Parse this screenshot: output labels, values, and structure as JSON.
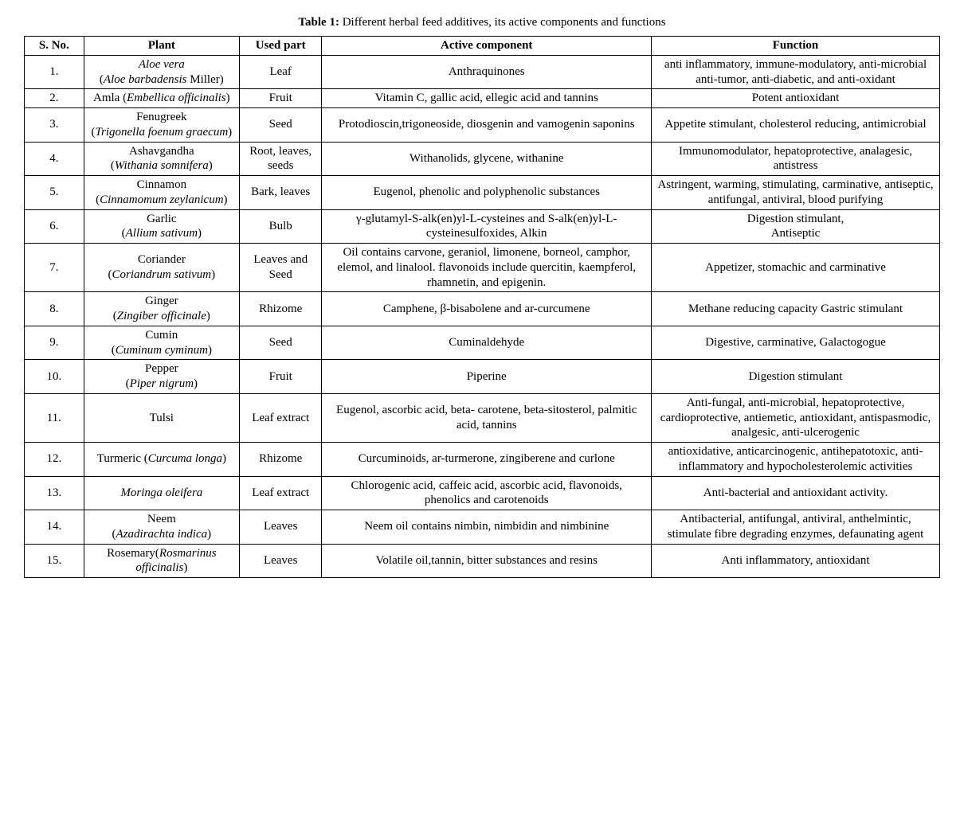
{
  "table": {
    "caption_label": "Table 1:",
    "caption_text": " Different herbal feed additives, its active components and functions",
    "columns": [
      "S. No.",
      "Plant",
      "Used part",
      "Active component",
      "Function"
    ],
    "rows": [
      {
        "sno": "1.",
        "plant_html": "<span class=\"it\">Aloe vera</span><br>(<span class=\"it\">Aloe barbadensis</span> Miller)",
        "part": "Leaf",
        "component": "Anthraquinones",
        "function": "anti inflammatory, immune-modulatory, anti-microbial anti-tumor, anti-diabetic, and anti-oxidant"
      },
      {
        "sno": "2.",
        "plant_html": "Amla (<span class=\"it\">Embellica officinalis</span>)",
        "part": "Fruit",
        "component": "Vitamin C, gallic acid, ellegic acid and tannins",
        "function": "Potent antioxidant"
      },
      {
        "sno": "3.",
        "plant_html": "Fenugreek<br>(<span class=\"it\">Trigonella foenum graecum</span>)",
        "part": "Seed",
        "component": "Protodioscin,trigoneoside, diosgenin and vamogenin saponins",
        "function": "Appetite stimulant, cholesterol reducing, antimicrobial"
      },
      {
        "sno": "4.",
        "plant_html": "Ashavgandha<br>(<span class=\"it\">Withania somnifera</span>)",
        "part": "Root, leaves, seeds",
        "component": "Withanolids, glycene, withanine",
        "function": "Immunomodulator, hepatoprotective, analagesic, antistress"
      },
      {
        "sno": "5.",
        "plant_html": "Cinnamon<br>(<span class=\"it\">Cinnamomum zeylanicum</span>)",
        "part": "Bark, leaves",
        "component": "Eugenol, phenolic and polyphenolic substances",
        "function": "Astringent, warming, stimulating, carminative, antiseptic, antifungal, antiviral, blood purifying"
      },
      {
        "sno": "6.",
        "plant_html": "Garlic<br>(<span class=\"it\">Allium sativum</span>)",
        "part": "Bulb",
        "component": "γ-glutamyl-S-alk(en)yl-L-cysteines and S-alk(en)yl-L-cysteinesulfoxides, Alkin",
        "function": "Digestion stimulant,<br>Antiseptic"
      },
      {
        "sno": "7.",
        "plant_html": "Coriander<br>(<span class=\"it\">Coriandrum sativum</span>)",
        "part": "Leaves and Seed",
        "component": "Oil contains carvone, geraniol, limonene, borneol, camphor, elemol, and linalool. flavonoids include quercitin, kaempferol, rhamnetin, and epigenin.",
        "function": "Appetizer, stomachic and carminative"
      },
      {
        "sno": "8.",
        "plant_html": "Ginger<br>(<span class=\"it\">Zingiber officinale</span>)",
        "part": "Rhizome",
        "component": "Camphene, β-bisabolene and ar-curcumene",
        "function": "Methane reducing capacity Gastric stimulant"
      },
      {
        "sno": "9.",
        "plant_html": "Cumin<br>(<span class=\"it\">Cuminum cyminum</span>)",
        "part": "Seed",
        "component": "Cuminaldehyde",
        "function": "Digestive, carminative, Galactogogue"
      },
      {
        "sno": "10.",
        "plant_html": "Pepper<br>(<span class=\"it\">Piper nigrum</span>)",
        "part": "Fruit",
        "component": "Piperine",
        "function": "Digestion stimulant"
      },
      {
        "sno": "11.",
        "plant_html": "Tulsi",
        "part": "Leaf extract",
        "component": "Eugenol, ascorbic acid, beta- carotene, beta-sitosterol, palmitic acid, tannins",
        "function": "Anti-fungal, anti-microbial, hepatoprotective, cardioprotective, antiemetic, antioxidant, antispasmodic, analgesic, anti-ulcerogenic"
      },
      {
        "sno": "12.",
        "plant_html": "Turmeric (<span class=\"it\">Curcuma longa</span>)",
        "part": "Rhizome",
        "component": "Curcuminoids, ar-turmerone, zingiberene and curlone",
        "function": "antioxidative, anticarcinogenic, antihepatotoxic, anti-inflammatory and hypocholesterolemic activities"
      },
      {
        "sno": "13.",
        "plant_html": "<span class=\"it\">Moringa oleifera</span>",
        "part": "Leaf extract",
        "component": "Chlorogenic acid, caffeic acid, ascorbic acid, flavonoids, phenolics and carotenoids",
        "function": "Anti-bacterial and antioxidant activity."
      },
      {
        "sno": "14.",
        "plant_html": "Neem<br>(<span class=\"it\">Azadirachta indica</span>)",
        "part": "Leaves",
        "component": "Neem oil contains nimbin, nimbidin and nimbinine",
        "function": "Antibacterial, antifungal, antiviral, anthelmintic, stimulate fibre degrading enzymes, defaunating agent"
      },
      {
        "sno": "15.",
        "plant_html": "Rosemary(<span class=\"it\">Rosmarinus officinalis</span>)",
        "part": "Leaves",
        "component": "Volatile oil,tannin, bitter substances and resins",
        "function": "Anti inflammatory, antioxidant"
      }
    ]
  }
}
